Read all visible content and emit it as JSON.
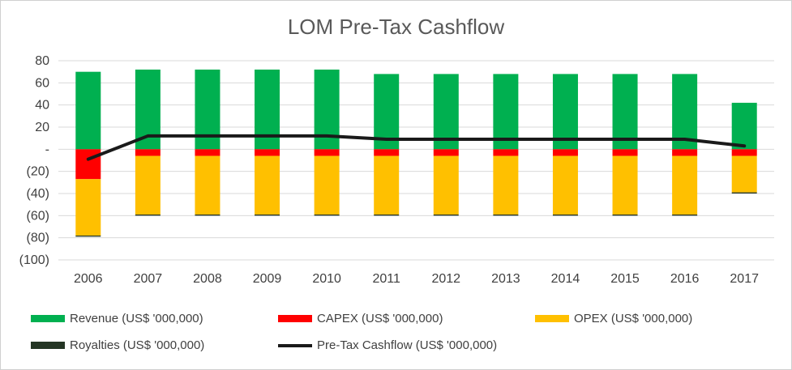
{
  "chart_data": {
    "type": "bar",
    "stacked": true,
    "title": "LOM Pre-Tax Cashflow",
    "categories": [
      "2006",
      "2007",
      "2008",
      "2009",
      "2010",
      "2011",
      "2012",
      "2013",
      "2014",
      "2015",
      "2016",
      "2017"
    ],
    "ylim": [
      -100,
      80
    ],
    "yticks": [
      {
        "value": 80,
        "label": "80"
      },
      {
        "value": 60,
        "label": "60"
      },
      {
        "value": 40,
        "label": "40"
      },
      {
        "value": 20,
        "label": "20"
      },
      {
        "value": 0,
        "label": "-"
      },
      {
        "value": -20,
        "label": "(20)"
      },
      {
        "value": -40,
        "label": "(40)"
      },
      {
        "value": -60,
        "label": "(60)"
      },
      {
        "value": -80,
        "label": "(80)"
      },
      {
        "value": -100,
        "label": "(100)"
      }
    ],
    "grid": true,
    "legend_position": "bottom",
    "series": [
      {
        "name": "Revenue (US$ '000,000)",
        "kind": "bar",
        "color": "#00b050",
        "values": [
          70,
          72,
          72,
          72,
          72,
          68,
          68,
          68,
          68,
          68,
          68,
          42
        ]
      },
      {
        "name": "CAPEX (US$ '000,000)",
        "kind": "bar",
        "color": "#ff0000",
        "values": [
          -27,
          -6,
          -6,
          -6,
          -6,
          -6,
          -6,
          -6,
          -6,
          -6,
          -6,
          -6
        ]
      },
      {
        "name": "OPEX (US$ '000,000)",
        "kind": "bar",
        "color": "#ffc000",
        "values": [
          -51,
          -53,
          -53,
          -53,
          -53,
          -53,
          -53,
          -53,
          -53,
          -53,
          -53,
          -33
        ]
      },
      {
        "name": "Royalties (US$ '000,000)",
        "kind": "bar",
        "color": "#243524",
        "values": [
          -1,
          -1,
          -1,
          -1,
          -1,
          -1,
          -1,
          -1,
          -1,
          -1,
          -1,
          -1
        ]
      },
      {
        "name": "Pre-Tax Cashflow (US$ '000,000)",
        "kind": "line",
        "color": "#1a1a1a",
        "values": [
          -9,
          12,
          12,
          12,
          12,
          9,
          9,
          9,
          9,
          9,
          9,
          3
        ]
      }
    ]
  }
}
